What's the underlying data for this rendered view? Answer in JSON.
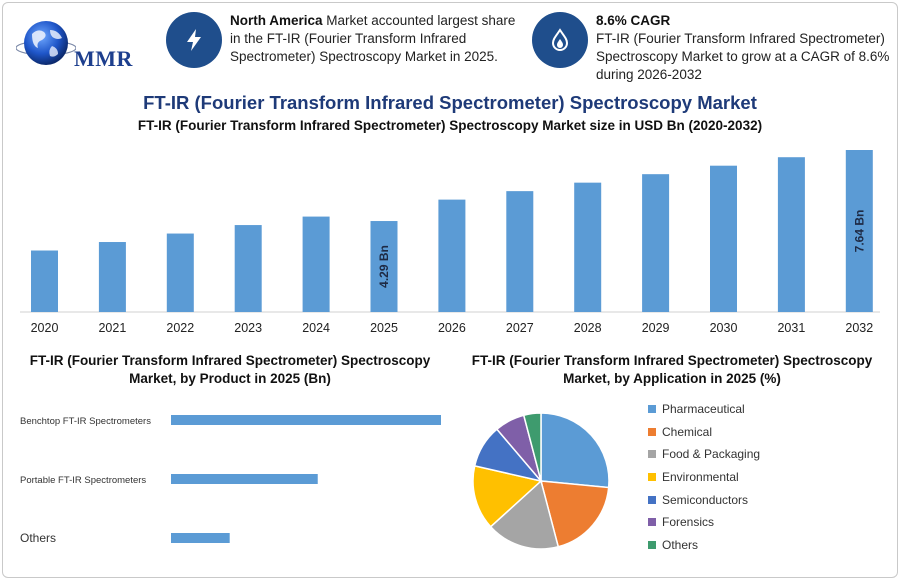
{
  "logo": {
    "text": "MMR"
  },
  "highlights": [
    {
      "bold": "North America",
      "text": " Market accounted largest share in the FT-IR (Fourier Transform Infrared Spectrometer) Spectroscopy Market in 2025.",
      "icon": "lightning-icon"
    },
    {
      "bold": "8.6% CAGR",
      "text": "FT-IR (Fourier Transform Infrared Spectrometer) Spectroscopy Market to grow at a CAGR of 8.6% during 2026-2032",
      "icon": "flame-drop-icon"
    }
  ],
  "title": "FT-IR (Fourier Transform Infrared Spectrometer) Spectroscopy Market",
  "colors": {
    "bar": "#5b9bd5",
    "title": "#1e3a78",
    "icon_bg": "#1f4e8c"
  },
  "chart_data": [
    {
      "type": "bar",
      "title": "FT-IR (Fourier Transform Infrared Spectrometer) Spectroscopy Market size in USD Bn (2020-2032)",
      "categories": [
        "2020",
        "2021",
        "2022",
        "2023",
        "2024",
        "2025",
        "2026",
        "2027",
        "2028",
        "2029",
        "2030",
        "2031",
        "2032"
      ],
      "values": [
        2.9,
        3.3,
        3.7,
        4.1,
        4.5,
        4.29,
        5.3,
        5.7,
        6.1,
        6.5,
        6.9,
        7.3,
        7.64
      ],
      "data_labels": [
        {
          "index": 5,
          "text": "4.29 Bn"
        },
        {
          "index": 12,
          "text": "7.64 Bn"
        }
      ],
      "grid": false
    },
    {
      "type": "bar",
      "orientation": "horizontal",
      "title": "FT-IR (Fourier Transform Infrared Spectrometer) Spectroscopy Market, by Product in 2025 (Bn)",
      "categories": [
        "Benchtop FT-IR Spectrometers",
        "Portable FT-IR Spectrometers",
        "Others"
      ],
      "values": [
        2.3,
        1.25,
        0.5
      ]
    },
    {
      "type": "pie",
      "title": "FT-IR (Fourier Transform Infrared Spectrometer) Spectroscopy Market, by Application in 2025 (%)",
      "labels": [
        "Pharmaceutical",
        "Chemical",
        "Food & Packaging",
        "Environmental",
        "Semiconductors",
        "Forensics",
        "Others"
      ],
      "values": [
        26,
        19,
        17,
        15,
        10,
        7,
        4
      ],
      "colors": [
        "#5b9bd5",
        "#ed7d31",
        "#a5a5a5",
        "#ffc000",
        "#4472c4",
        "#7f5fa8",
        "#3e9b6e"
      ],
      "legend": "right"
    }
  ]
}
